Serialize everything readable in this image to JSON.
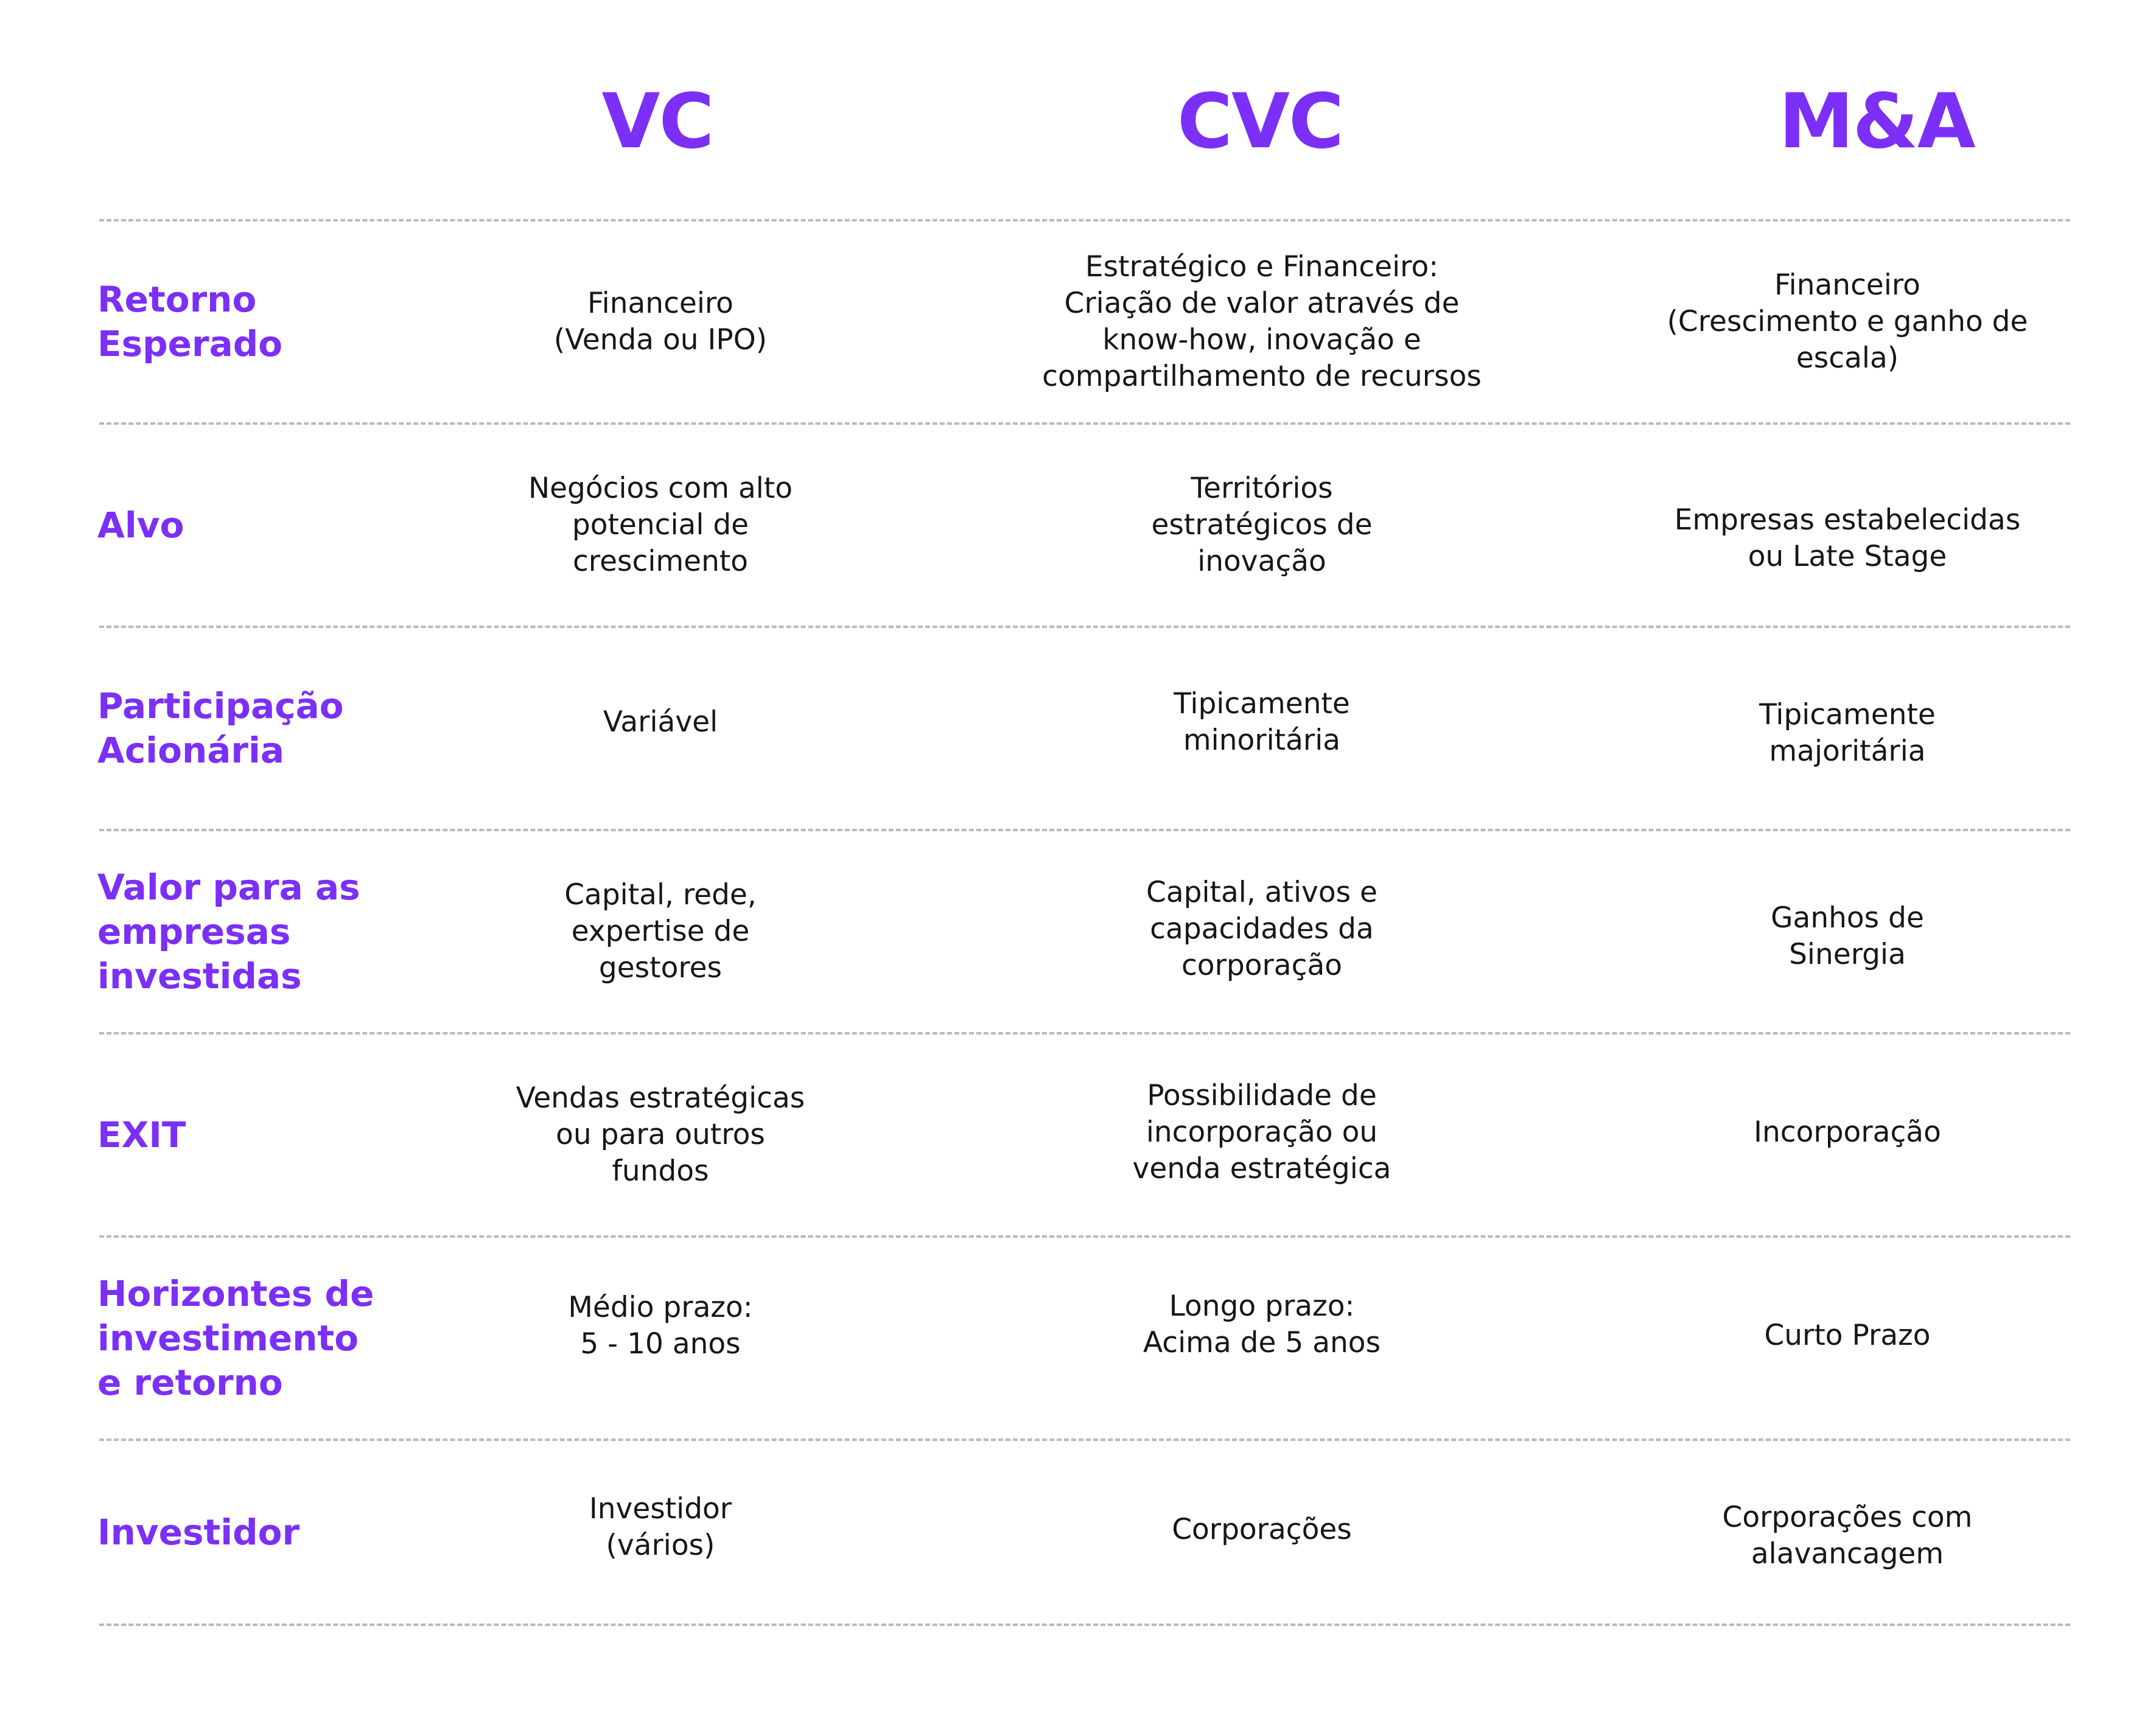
{
  "colors": {
    "accent": "#7b2ff7",
    "text": "#161616",
    "divider": "#b9b9b9",
    "background": "#ffffff"
  },
  "columns": [
    "VC",
    "CVC",
    "M&A"
  ],
  "rows": [
    {
      "label": "Retorno\nEsperado",
      "vc": "Financeiro\n(Venda ou IPO)",
      "cvc": "Estratégico e Financeiro:\nCriação de valor através de\nknow-how, inovação e\ncompartilhamento de recursos",
      "ma": "Financeiro\n(Crescimento e ganho de\nescala)"
    },
    {
      "label": "Alvo",
      "vc": "Negócios com alto\npotencial de\ncrescimento",
      "cvc": "Territórios\nestratégicos de\ninovação",
      "ma": "Empresas estabelecidas\nou Late Stage"
    },
    {
      "label": "Participação\nAcionária",
      "vc": "Variável",
      "cvc": "Tipicamente\nminoritária",
      "ma": "Tipicamente\nmajoritária"
    },
    {
      "label": "Valor para as\nempresas\ninvestidas",
      "vc": "Capital, rede,\nexpertise de\ngestores",
      "cvc": "Capital, ativos e\ncapacidades da\ncorporação",
      "ma": "Ganhos de\nSinergia"
    },
    {
      "label": "EXIT",
      "vc": "Vendas estratégicas\nou para outros\nfundos",
      "cvc": "Possibilidade de\nincorporação ou\nvenda estratégica",
      "ma": "Incorporação"
    },
    {
      "label": "Horizontes de\ninvestimento\ne retorno",
      "vc": "Médio prazo:\n5 - 10 anos",
      "cvc": "Longo prazo:\nAcima de 5 anos",
      "ma": "Curto Prazo"
    },
    {
      "label": "Investidor",
      "vc": "Investidor\n(vários)",
      "cvc": "Corporações",
      "ma": "Corporações com\nalavancagem"
    }
  ]
}
